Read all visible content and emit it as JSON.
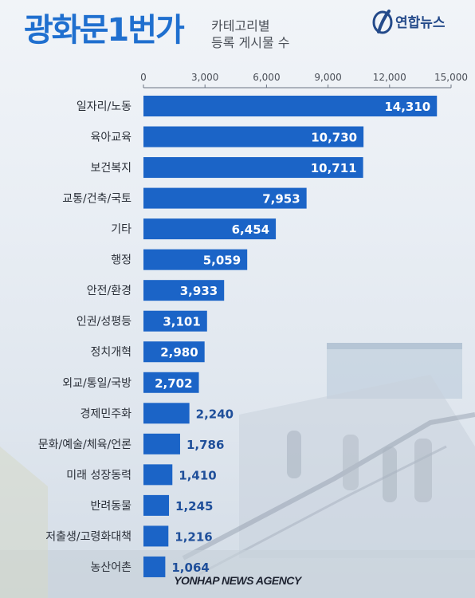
{
  "header": {
    "title": "광화문1번가",
    "subtitle_line1": "카테고리별",
    "subtitle_line2": "등록 게시물 수",
    "logo_text": "연합뉴스"
  },
  "footer": {
    "agency": "YONHAP NEWS AGENCY"
  },
  "colors": {
    "bar": "#1b64c7",
    "title": "#1f6fcf",
    "value_label_inside": "#ffffff",
    "value_label_outside": "#1f4f9a"
  },
  "chart_data": {
    "type": "bar",
    "orientation": "horizontal",
    "categories": [
      "일자리/노동",
      "육아교육",
      "보건복지",
      "교통/건축/국토",
      "기타",
      "행정",
      "안전/환경",
      "인권/성평등",
      "정치개혁",
      "외교/통일/국방",
      "경제민주화",
      "문화/예술/체육/언론",
      "미래 성장동력",
      "반려동물",
      "저출생/고령화대책",
      "농산어촌"
    ],
    "values": [
      14310,
      10730,
      10711,
      7953,
      6454,
      5059,
      3933,
      3101,
      2980,
      2702,
      2240,
      1786,
      1410,
      1245,
      1216,
      1064
    ],
    "value_labels": [
      "14,310",
      "10,730",
      "10,711",
      "7,953",
      "6,454",
      "5,059",
      "3,933",
      "3,101",
      "2,980",
      "2,702",
      "2,240",
      "1,786",
      "1,410",
      "1,245",
      "1,216",
      "1,064"
    ],
    "xticks": [
      0,
      3000,
      6000,
      9000,
      12000,
      15000
    ],
    "xtick_labels": [
      "0",
      "3,000",
      "6,000",
      "9,000",
      "12,000",
      "15,000"
    ],
    "xlim": [
      0,
      15000
    ],
    "axis_position": "top",
    "grid": false,
    "title": "광화문1번가 카테고리별 등록 게시물 수"
  }
}
